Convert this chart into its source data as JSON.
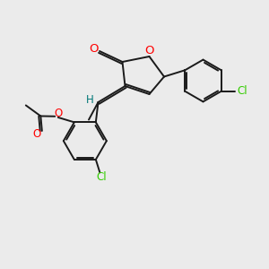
{
  "bg_color": "#ebebeb",
  "bond_color": "#1a1a1a",
  "o_color": "#ff0000",
  "cl_color": "#33cc00",
  "h_color": "#007777",
  "line_width": 1.4,
  "font_size": 8.5,
  "fig_size": [
    3.0,
    3.0
  ],
  "dpi": 100,
  "xlim": [
    0,
    10
  ],
  "ylim": [
    0,
    10
  ]
}
